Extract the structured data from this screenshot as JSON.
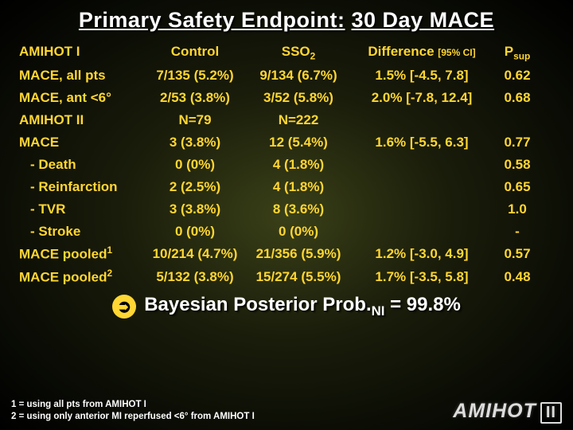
{
  "title_a": "Primary Safety Endpoint:",
  "title_b": "30 Day MACE",
  "headers": {
    "control": "Control",
    "sso": "SSO",
    "sso_sub": "2",
    "diff": "Difference",
    "ci": "[95% CI]",
    "psup_a": "P",
    "psup_b": "sup"
  },
  "rows": [
    {
      "label": "AMIHOT I",
      "ctrl": "",
      "sso": "",
      "diff": "",
      "psup": "",
      "hdr": true
    },
    {
      "label": "MACE, all pts",
      "ctrl": "7/135 (5.2%)",
      "sso": "9/134 (6.7%)",
      "diff": "1.5% [-4.5, 7.8]",
      "psup": "0.62"
    },
    {
      "label": "MACE, ant <6°",
      "ctrl": "2/53 (3.8%)",
      "sso": "3/52 (5.8%)",
      "diff": "2.0% [-7.8, 12.4]",
      "psup": "0.68"
    },
    {
      "label": "AMIHOT II",
      "ctrl": "N=79",
      "sso": "N=222",
      "diff": "",
      "psup": ""
    },
    {
      "label": "MACE",
      "ctrl": "3 (3.8%)",
      "sso": "12 (5.4%)",
      "diff": "1.6% [-5.5, 6.3]",
      "psup": "0.77"
    },
    {
      "label": "- Death",
      "ctrl": "0 (0%)",
      "sso": "4 (1.8%)",
      "diff": "",
      "psup": "0.58",
      "indent": true
    },
    {
      "label": "- Reinfarction",
      "ctrl": "2 (2.5%)",
      "sso": "4 (1.8%)",
      "diff": "",
      "psup": "0.65",
      "indent": true
    },
    {
      "label": "- TVR",
      "ctrl": "3 (3.8%)",
      "sso": "8 (3.6%)",
      "diff": "",
      "psup": "1.0",
      "indent": true
    },
    {
      "label": "- Stroke",
      "ctrl": "0 (0%)",
      "sso": "0 (0%)",
      "diff": "",
      "psup": "-",
      "indent": true
    }
  ],
  "pooled": [
    {
      "label_a": "MACE pooled",
      "label_sup": "1",
      "ctrl": "10/214 (4.7%)",
      "sso": "21/356 (5.9%)",
      "diff": "1.2% [-3.0, 4.9]",
      "psup": "0.57"
    },
    {
      "label_a": "MACE pooled",
      "label_sup": "2",
      "ctrl": "5/132 (3.8%)",
      "sso": "15/274 (5.5%)",
      "diff": "1.7% [-3.5, 5.8]",
      "psup": "0.48"
    }
  ],
  "footer_a": "Bayesian Posterior Prob.",
  "footer_sub": "NI",
  "footer_b": " = 99.8%",
  "footnote1": "1 = using all pts from AMIHOT I",
  "footnote2": "2 = using only anterior MI reperfused <6° from AMIHOT I",
  "logo_a": "AMIHOT",
  "logo_b": "II",
  "colors": {
    "title": "#ffffff",
    "table_text": "#ffd633",
    "footer_text": "#ffffff",
    "accent": "#ffd633"
  }
}
